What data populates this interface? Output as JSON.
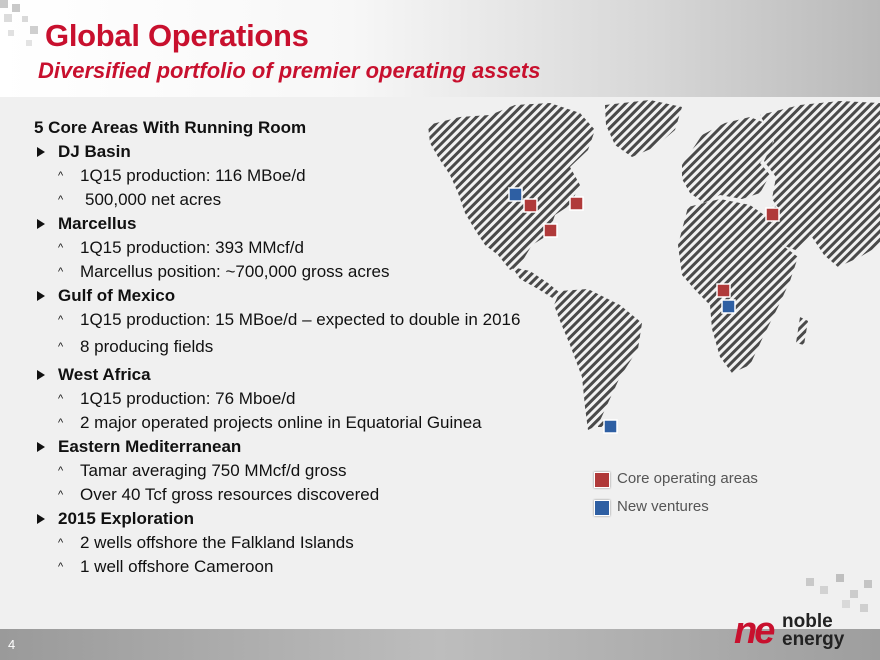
{
  "header": {
    "title": "Global Operations",
    "subtitle": "Diversified portfolio of premier operating assets"
  },
  "content": {
    "heading": "5 Core Areas With Running Room",
    "sections": [
      {
        "label": "DJ Basin",
        "items": [
          "1Q15 production: 116 MBoe/d",
          "500,000 net acres"
        ]
      },
      {
        "label": "Marcellus",
        "items": [
          "1Q15 production: 393 MMcf/d",
          "Marcellus position: ~700,000 gross acres"
        ]
      },
      {
        "label": "Gulf of Mexico",
        "items": [
          "1Q15 production: 15 MBoe/d – expected to double in 2016",
          "8 producing fields"
        ]
      },
      {
        "label": "West Africa",
        "items": [
          "1Q15 production: 76 Mboe/d",
          "2 major operated projects online in Equatorial Guinea"
        ]
      },
      {
        "label": "Eastern Mediterranean",
        "items": [
          "Tamar averaging 750 MMcf/d gross",
          "Over 40 Tcf gross resources discovered"
        ]
      },
      {
        "label": "2015 Exploration",
        "items": [
          "2 wells offshore the Falkland Islands",
          "1 well offshore Cameroon"
        ]
      }
    ]
  },
  "map": {
    "icon": "world-map-icon",
    "core_color": "#b03a3a",
    "new_color": "#2e5fa3"
  },
  "legend": {
    "core_label": "Core operating areas",
    "new_label": "New ventures"
  },
  "footer": {
    "page_number": "4",
    "logo_mark": "ne",
    "logo_line1": "noble",
    "logo_line2": "energy"
  }
}
